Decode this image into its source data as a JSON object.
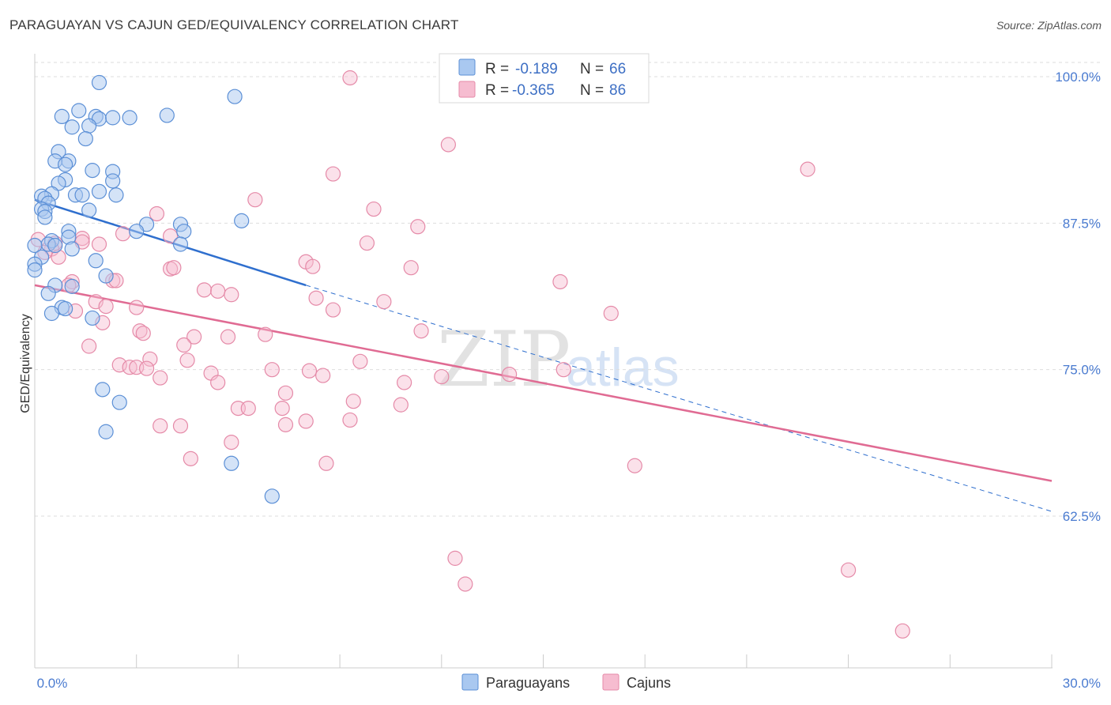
{
  "header": {
    "title": "PARAGUAYAN VS CAJUN GED/EQUIVALENCY CORRELATION CHART",
    "source": "Source: ZipAtlas.com"
  },
  "watermark": {
    "zip": "ZIP",
    "atlas": "atlas"
  },
  "colors": {
    "paraguayan_fill": "#a9c8f0",
    "paraguayan_stroke": "#5b8fd6",
    "paraguayan_line": "#2f6fce",
    "cajun_fill": "#f6bcd0",
    "cajun_stroke": "#e58aa8",
    "cajun_line": "#e06b93",
    "grid": "#dddddd",
    "tick_label": "#4a7bd0"
  },
  "legend": {
    "rows": [
      {
        "r_label": "R =",
        "r_value": "-0.189",
        "n_label": "N =",
        "n_value": "66"
      },
      {
        "r_label": "R =",
        "r_value": "-0.365",
        "n_label": "N =",
        "n_value": "86"
      }
    ]
  },
  "bottom_legend": [
    "Paraguayans",
    "Cajuns"
  ],
  "chart_data": {
    "type": "scatter",
    "title": "PARAGUAYAN VS CAJUN GED/EQUIVALENCY CORRELATION CHART",
    "xlabel": "",
    "ylabel": "GED/Equivalency",
    "xlim": [
      0,
      30
    ],
    "ylim": [
      52,
      101
    ],
    "x_tick_labels": [
      "0.0%",
      "30.0%"
    ],
    "y_ticks": [
      62.5,
      75.0,
      87.5,
      100.0
    ],
    "y_tick_labels": [
      "62.5%",
      "75.0%",
      "87.5%",
      "100.0%"
    ],
    "grid": true,
    "legend_position": "top-center",
    "series": [
      {
        "name": "Paraguayans",
        "r": -0.189,
        "n": 66,
        "trend": {
          "x_start": 0,
          "y_start": 89.5,
          "x_end": 8.0,
          "y_end": 82.2,
          "dash_to_x": 30,
          "dash_to_y": 62.9
        },
        "points": [
          [
            1.9,
            99.5
          ],
          [
            5.9,
            98.3
          ],
          [
            0.8,
            96.6
          ],
          [
            1.3,
            97.1
          ],
          [
            1.8,
            96.6
          ],
          [
            1.9,
            96.4
          ],
          [
            2.3,
            96.5
          ],
          [
            2.8,
            96.5
          ],
          [
            3.9,
            96.7
          ],
          [
            1.1,
            95.7
          ],
          [
            1.6,
            95.8
          ],
          [
            1.5,
            94.7
          ],
          [
            0.7,
            93.6
          ],
          [
            0.6,
            92.8
          ],
          [
            1.0,
            92.8
          ],
          [
            0.9,
            92.5
          ],
          [
            1.7,
            92.0
          ],
          [
            2.3,
            91.9
          ],
          [
            0.9,
            91.2
          ],
          [
            0.7,
            90.9
          ],
          [
            2.3,
            91.1
          ],
          [
            0.5,
            90.0
          ],
          [
            1.2,
            89.9
          ],
          [
            1.4,
            89.9
          ],
          [
            1.9,
            90.2
          ],
          [
            2.4,
            89.9
          ],
          [
            0.2,
            89.8
          ],
          [
            0.3,
            89.6
          ],
          [
            0.4,
            89.2
          ],
          [
            0.2,
            88.7
          ],
          [
            0.3,
            88.5
          ],
          [
            1.6,
            88.6
          ],
          [
            0.3,
            88.0
          ],
          [
            6.1,
            87.7
          ],
          [
            3.3,
            87.4
          ],
          [
            4.3,
            87.4
          ],
          [
            3.0,
            86.8
          ],
          [
            4.4,
            86.8
          ],
          [
            1.0,
            86.8
          ],
          [
            1.0,
            86.3
          ],
          [
            0.5,
            86.0
          ],
          [
            0.4,
            85.7
          ],
          [
            0.6,
            85.6
          ],
          [
            4.3,
            85.7
          ],
          [
            0.0,
            85.6
          ],
          [
            1.1,
            85.3
          ],
          [
            0.2,
            84.6
          ],
          [
            1.8,
            84.3
          ],
          [
            0.0,
            84.0
          ],
          [
            0.0,
            83.5
          ],
          [
            2.1,
            83.0
          ],
          [
            0.6,
            82.2
          ],
          [
            1.1,
            82.1
          ],
          [
            0.4,
            81.5
          ],
          [
            0.8,
            80.3
          ],
          [
            0.9,
            80.2
          ],
          [
            0.5,
            79.8
          ],
          [
            1.7,
            79.4
          ],
          [
            2.0,
            73.3
          ],
          [
            2.5,
            72.2
          ],
          [
            2.1,
            69.7
          ],
          [
            5.8,
            67.0
          ],
          [
            7.0,
            64.2
          ]
        ]
      },
      {
        "name": "Cajuns",
        "r": -0.365,
        "n": 86,
        "trend": {
          "x_start": 0,
          "y_start": 82.2,
          "x_end": 30,
          "y_end": 65.5
        },
        "points": [
          [
            9.3,
            99.9
          ],
          [
            12.2,
            94.2
          ],
          [
            22.8,
            92.1
          ],
          [
            8.8,
            91.7
          ],
          [
            6.5,
            89.5
          ],
          [
            10.0,
            88.7
          ],
          [
            11.3,
            87.2
          ],
          [
            3.6,
            88.3
          ],
          [
            2.6,
            86.6
          ],
          [
            4.0,
            86.4
          ],
          [
            0.1,
            86.1
          ],
          [
            1.4,
            86.2
          ],
          [
            1.4,
            85.9
          ],
          [
            1.9,
            85.7
          ],
          [
            0.6,
            85.8
          ],
          [
            0.5,
            85.3
          ],
          [
            0.3,
            85.0
          ],
          [
            0.7,
            84.6
          ],
          [
            9.8,
            85.8
          ],
          [
            8.0,
            84.2
          ],
          [
            8.2,
            83.8
          ],
          [
            11.1,
            83.7
          ],
          [
            4.0,
            83.6
          ],
          [
            4.1,
            83.7
          ],
          [
            2.3,
            82.6
          ],
          [
            2.4,
            82.6
          ],
          [
            1.1,
            82.5
          ],
          [
            1.0,
            82.2
          ],
          [
            15.5,
            82.5
          ],
          [
            5.0,
            81.8
          ],
          [
            5.4,
            81.7
          ],
          [
            5.8,
            81.4
          ],
          [
            8.3,
            81.1
          ],
          [
            10.3,
            80.8
          ],
          [
            1.8,
            80.8
          ],
          [
            2.1,
            80.4
          ],
          [
            3.0,
            80.3
          ],
          [
            8.8,
            80.1
          ],
          [
            1.2,
            80.0
          ],
          [
            17.0,
            79.8
          ],
          [
            2.0,
            79.0
          ],
          [
            3.1,
            78.3
          ],
          [
            3.2,
            78.1
          ],
          [
            11.4,
            78.3
          ],
          [
            6.8,
            78.0
          ],
          [
            4.7,
            77.8
          ],
          [
            5.7,
            77.8
          ],
          [
            1.6,
            77.0
          ],
          [
            4.4,
            77.1
          ],
          [
            3.4,
            75.9
          ],
          [
            4.5,
            75.8
          ],
          [
            9.6,
            75.7
          ],
          [
            2.5,
            75.4
          ],
          [
            2.8,
            75.2
          ],
          [
            3.0,
            75.2
          ],
          [
            3.3,
            75.1
          ],
          [
            7.0,
            75.0
          ],
          [
            8.1,
            74.9
          ],
          [
            5.2,
            74.7
          ],
          [
            14.0,
            74.6
          ],
          [
            15.6,
            75.0
          ],
          [
            8.5,
            74.5
          ],
          [
            12.0,
            74.4
          ],
          [
            3.7,
            74.3
          ],
          [
            10.9,
            73.9
          ],
          [
            5.4,
            73.9
          ],
          [
            7.4,
            73.0
          ],
          [
            9.4,
            72.3
          ],
          [
            10.8,
            72.0
          ],
          [
            6.0,
            71.7
          ],
          [
            6.3,
            71.7
          ],
          [
            7.3,
            71.7
          ],
          [
            9.3,
            70.7
          ],
          [
            8.0,
            70.6
          ],
          [
            7.4,
            70.3
          ],
          [
            3.7,
            70.2
          ],
          [
            4.3,
            70.2
          ],
          [
            5.8,
            68.8
          ],
          [
            4.6,
            67.4
          ],
          [
            8.6,
            67.0
          ],
          [
            17.7,
            66.8
          ],
          [
            12.4,
            58.9
          ],
          [
            12.7,
            56.7
          ],
          [
            24.0,
            57.9
          ],
          [
            25.6,
            52.7
          ]
        ]
      }
    ]
  }
}
